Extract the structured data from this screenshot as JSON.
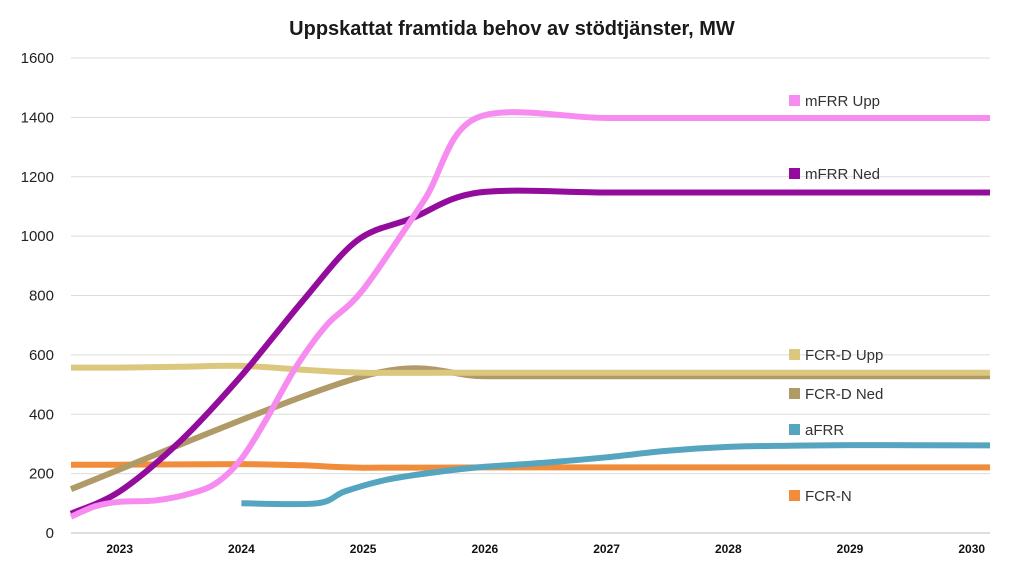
{
  "chart_data": {
    "type": "line",
    "title": "Uppskattat framtida behov av stödtjänster, MW",
    "xlabel": "",
    "ylabel": "",
    "xlim": [
      2022.6,
      2030.15
    ],
    "ylim": [
      0,
      1600
    ],
    "yticks": [
      0,
      200,
      400,
      600,
      800,
      1000,
      1200,
      1400,
      1600
    ],
    "xticks": [
      "2023",
      "2024",
      "2025",
      "2026",
      "2027",
      "2028",
      "2029",
      "2030"
    ],
    "grid": true,
    "legend_position": "right",
    "series": [
      {
        "name": "FCR-N",
        "color": "#F08C3A",
        "points": [
          [
            2022.6,
            230
          ],
          [
            2023.0,
            230
          ],
          [
            2024.0,
            232
          ],
          [
            2024.5,
            228
          ],
          [
            2025.0,
            220
          ],
          [
            2026.0,
            221
          ],
          [
            2027.0,
            221
          ],
          [
            2028.0,
            221
          ],
          [
            2029.0,
            221
          ],
          [
            2030.15,
            221
          ]
        ]
      },
      {
        "name": "aFRR",
        "color": "#55A5C0",
        "points": [
          [
            2024.0,
            100
          ],
          [
            2024.62,
            100
          ],
          [
            2024.85,
            140
          ],
          [
            2025.2,
            180
          ],
          [
            2025.6,
            205
          ],
          [
            2026.0,
            223
          ],
          [
            2026.5,
            237
          ],
          [
            2027.0,
            255
          ],
          [
            2027.5,
            277
          ],
          [
            2028.0,
            290
          ],
          [
            2028.5,
            294
          ],
          [
            2029.0,
            296
          ],
          [
            2030.15,
            295
          ]
        ]
      },
      {
        "name": "FCR-D Ned",
        "color": "#B09A68",
        "points": [
          [
            2022.6,
            148
          ],
          [
            2025.0,
            528
          ],
          [
            2026.0,
            528
          ],
          [
            2027.0,
            528
          ],
          [
            2028.0,
            528
          ],
          [
            2029.0,
            528
          ],
          [
            2030.15,
            528
          ]
        ]
      },
      {
        "name": "FCR-D Upp",
        "color": "#DCC77E",
        "points": [
          [
            2022.6,
            557
          ],
          [
            2023.0,
            557
          ],
          [
            2023.5,
            560
          ],
          [
            2024.0,
            563
          ],
          [
            2024.5,
            550
          ],
          [
            2025.0,
            540
          ],
          [
            2026.0,
            540
          ],
          [
            2027.0,
            540
          ],
          [
            2028.0,
            540
          ],
          [
            2029.0,
            540
          ],
          [
            2030.15,
            540
          ]
        ]
      },
      {
        "name": "mFRR Ned",
        "color": "#930C9C",
        "points": [
          [
            2022.6,
            65
          ],
          [
            2023.0,
            140
          ],
          [
            2023.5,
            310
          ],
          [
            2024.0,
            530
          ],
          [
            2024.5,
            780
          ],
          [
            2024.95,
            985
          ],
          [
            2025.4,
            1060
          ],
          [
            2025.95,
            1147
          ],
          [
            2027.0,
            1147
          ],
          [
            2028.0,
            1147
          ],
          [
            2029.0,
            1147
          ],
          [
            2030.15,
            1147
          ]
        ]
      },
      {
        "name": "mFRR Upp",
        "color": "#F68CF0",
        "points": [
          [
            2022.6,
            55
          ],
          [
            2022.8,
            90
          ],
          [
            2023.0,
            105
          ],
          [
            2023.3,
            110
          ],
          [
            2023.6,
            135
          ],
          [
            2023.8,
            170
          ],
          [
            2024.0,
            250
          ],
          [
            2024.2,
            380
          ],
          [
            2024.45,
            560
          ],
          [
            2024.7,
            700
          ],
          [
            2025.0,
            820
          ],
          [
            2025.5,
            1120
          ],
          [
            2025.93,
            1398
          ],
          [
            2027.0,
            1398
          ],
          [
            2028.0,
            1398
          ],
          [
            2029.0,
            1398
          ],
          [
            2030.15,
            1398
          ]
        ]
      }
    ],
    "legend": [
      {
        "name": "mFRR Upp",
        "color": "#F68CF0"
      },
      {
        "name": "mFRR Ned",
        "color": "#930C9C"
      },
      {
        "name": "FCR-D Upp",
        "color": "#DCC77E"
      },
      {
        "name": "FCR-D Ned",
        "color": "#B09A68"
      },
      {
        "name": "aFRR",
        "color": "#55A5C0"
      },
      {
        "name": "FCR-N",
        "color": "#F08C3A"
      }
    ]
  }
}
